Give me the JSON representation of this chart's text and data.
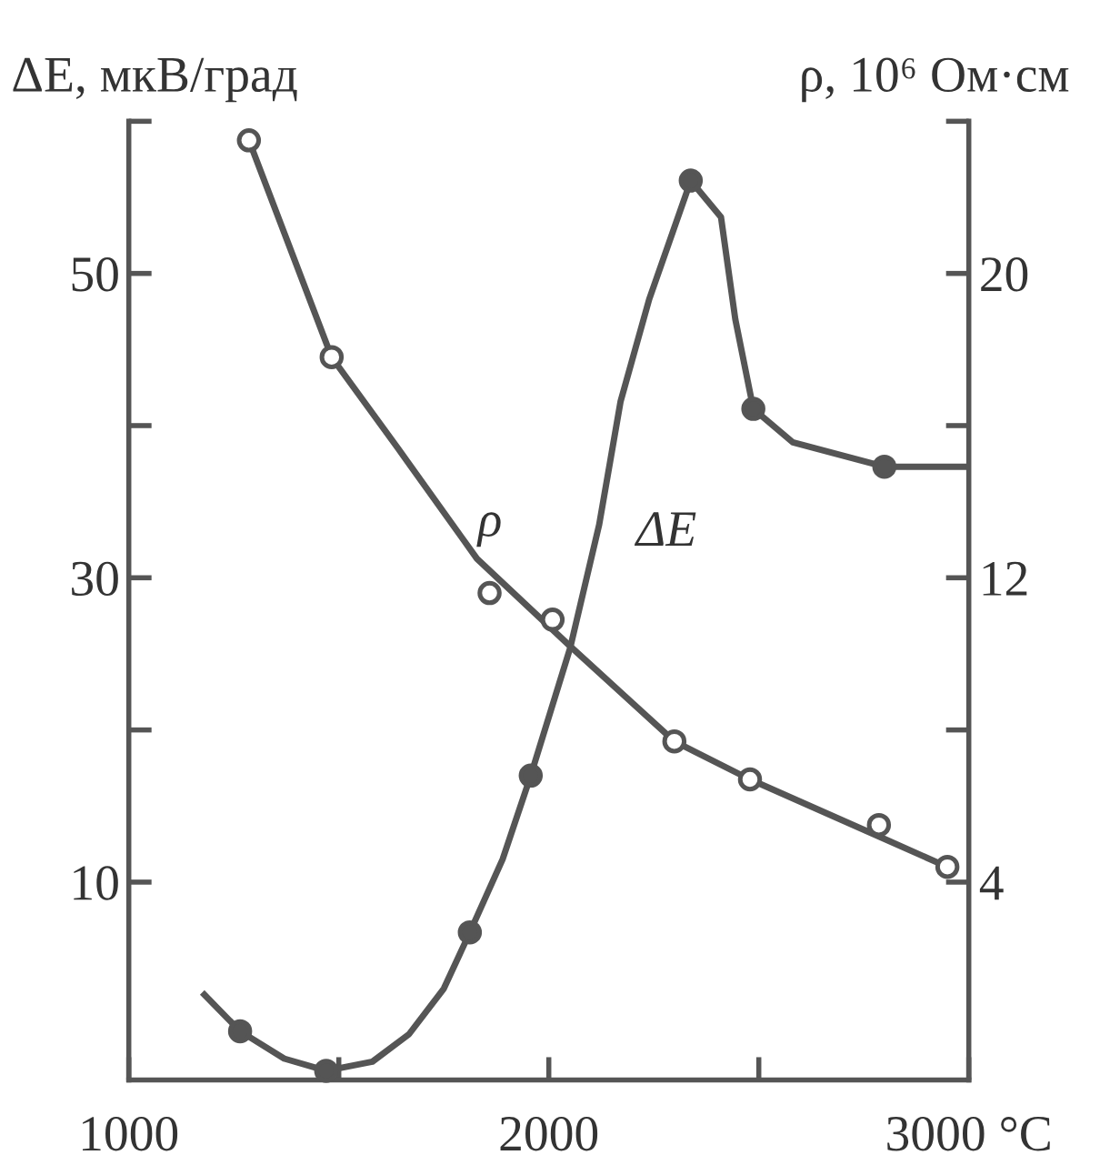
{
  "chart_data": {
    "type": "line",
    "xlabel": null,
    "ylabel": "ΔE, мкВ/град",
    "y2label": "ρ, 10⁶ Ом·см",
    "xlim": [
      1000,
      3000
    ],
    "xticks": [
      1000,
      {
        "value": 1500,
        "label": null
      },
      2000,
      {
        "value": 2500,
        "label": null
      },
      {
        "value": 3000,
        "label": "3000 °C"
      }
    ],
    "ylim": [
      -3,
      60
    ],
    "yticks": [
      10,
      {
        "value": 20,
        "label": null
      },
      30,
      {
        "value": 40,
        "label": null
      },
      50,
      {
        "value": 60,
        "label": null
      }
    ],
    "y2lim": [
      -1.2,
      24
    ],
    "y2ticks": [
      4,
      {
        "value": 8,
        "label": null
      },
      12,
      {
        "value": 16,
        "label": null
      },
      20,
      {
        "value": 24,
        "label": null
      }
    ],
    "grid": false,
    "legend": false,
    "series": [
      {
        "color": "#555555",
        "marker": "none",
        "x": [
          1180,
          1265,
          1370,
          1470,
          1580,
          1667,
          1750,
          1812,
          1890,
          1957,
          2051,
          2120,
          2171,
          2239,
          2338,
          2410,
          2444,
          2487,
          2581,
          2799,
          3000
        ],
        "values": [
          2.6,
          0.2,
          -1.6,
          -2.4,
          -1.8,
          0,
          3,
          6.7,
          11.5,
          17,
          25.4,
          33.5,
          41.6,
          48.3,
          56.1,
          53.7,
          47,
          41.1,
          38.9,
          37.3,
          37.3
        ]
      },
      {
        "type": "scatter",
        "color": "#555555",
        "marker": "circle",
        "x": [
          1265,
          1470,
          1812,
          1957,
          2338,
          2487,
          2799
        ],
        "values": [
          0.2,
          -2.4,
          6.7,
          17,
          56.1,
          41.1,
          37.3
        ]
      },
      {
        "axis": "y2",
        "color": "#555555",
        "marker": "none",
        "x": [
          1286,
          1483,
          1641,
          1829,
          2051,
          2299,
          2479,
          2786,
          2949
        ],
        "values": [
          23.5,
          17.8,
          15.4,
          12.5,
          10.2,
          7.7,
          6.7,
          5.2,
          4.4
        ]
      },
      {
        "type": "scatter",
        "axis": "y2",
        "color": "#ffffff",
        "marker": "circle",
        "x": [
          1286,
          1483,
          1859,
          2009,
          2299,
          2479,
          2786,
          2949
        ],
        "values": [
          23.5,
          17.8,
          11.6,
          10.9,
          7.7,
          6.7,
          5.5,
          4.4
        ]
      }
    ],
    "annotations": [
      "ρ",
      "ΔE"
    ]
  }
}
